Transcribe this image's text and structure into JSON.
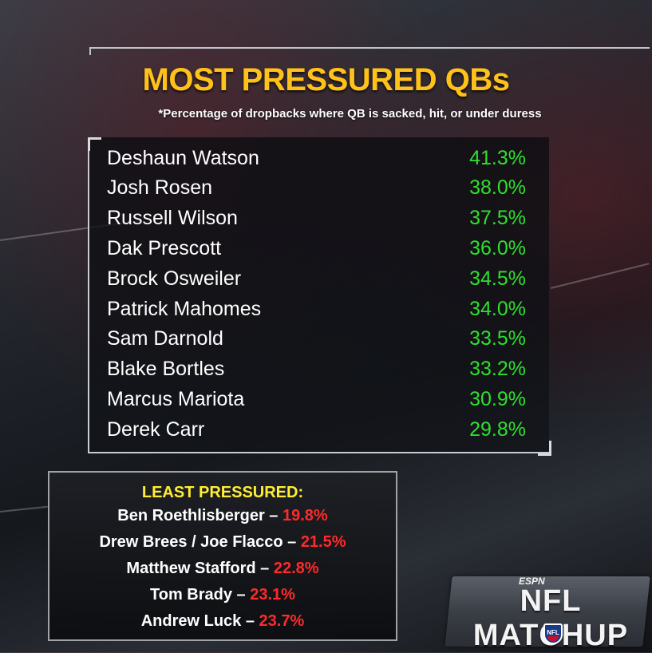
{
  "title": "MOST PRESSURED QBs",
  "subtitle": "*Percentage of dropbacks where QB is sacked, hit, or under duress",
  "most_pressured": [
    {
      "name": "Deshaun Watson",
      "pct": "41.3%"
    },
    {
      "name": "Josh Rosen",
      "pct": "38.0%"
    },
    {
      "name": "Russell Wilson",
      "pct": "37.5%"
    },
    {
      "name": "Dak Prescott",
      "pct": "36.0%"
    },
    {
      "name": "Brock Osweiler",
      "pct": "34.5%"
    },
    {
      "name": "Patrick Mahomes",
      "pct": "34.0%"
    },
    {
      "name": "Sam Darnold",
      "pct": "33.5%"
    },
    {
      "name": "Blake Bortles",
      "pct": "33.2%"
    },
    {
      "name": "Marcus Mariota",
      "pct": "30.9%"
    },
    {
      "name": "Derek Carr",
      "pct": "29.8%"
    }
  ],
  "least_pressured": {
    "title": "LEAST PRESSURED:",
    "items": [
      {
        "name": "Ben Roethlisberger",
        "pct": "19.8%"
      },
      {
        "name": "Drew Brees / Joe Flacco",
        "pct": "21.5%"
      },
      {
        "name": "Matthew Stafford",
        "pct": "22.8%"
      },
      {
        "name": "Tom Brady",
        "pct": "23.1%"
      },
      {
        "name": "Andrew Luck",
        "pct": "23.7%"
      }
    ]
  },
  "separator": " – ",
  "logo": {
    "network": "ESPN",
    "show": "NFL MATCHUP",
    "shield": "NFL"
  },
  "colors": {
    "title": "#ffc21a",
    "pct_green": "#2ee02e",
    "least_title": "#ffee33",
    "least_pct_red": "#ff2a2a"
  }
}
